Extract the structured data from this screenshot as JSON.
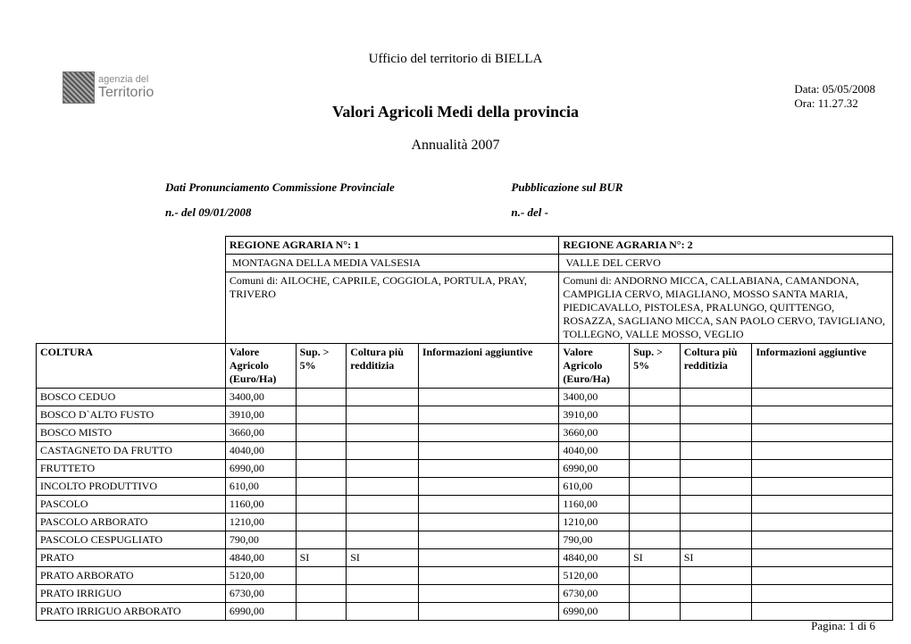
{
  "logo": {
    "line1": "agenzia del",
    "line2": "Territorio"
  },
  "office": "Ufficio del territorio di  BIELLA",
  "date_label": "Data: ",
  "date_value": "05/05/2008",
  "time_label": "Ora: ",
  "time_value": "11.27.32",
  "title": "Valori Agricoli Medi della provincia",
  "year_line": "Annualità  2007",
  "pron_label": "Dati Pronunciamento Commissione Provinciale",
  "pub_label": "Pubblicazione sul BUR",
  "pron_value": "n.- del  09/01/2008",
  "pub_value": "n.-  del -",
  "region1": {
    "header": "REGIONE AGRARIA N°:  1",
    "name": "MONTAGNA DELLA MEDIA VALSESIA",
    "comuni": "Comuni di: AILOCHE, CAPRILE, COGGIOLA, PORTULA, PRAY, TRIVERO"
  },
  "region2": {
    "header": "REGIONE AGRARIA N°: 2",
    "name": "VALLE DEL CERVO",
    "comuni": "Comuni di: ANDORNO MICCA, CALLABIANA, CAMANDONA, CAMPIGLIA CERVO, MIAGLIANO, MOSSO SANTA MARIA, PIEDICAVALLO, PISTOLESA, PRALUNGO, QUITTENGO, ROSAZZA, SAGLIANO MICCA, SAN PAOLO CERVO, TAVIGLIANO, TOLLEGNO, VALLE MOSSO, VEGLIO"
  },
  "columns": {
    "coltura": "COLTURA",
    "valore": "Valore Agricolo (Euro/Ha)",
    "sup": "Sup. > 5%",
    "redd": "Coltura più redditizia",
    "info": "Informazioni aggiuntive"
  },
  "rows": [
    {
      "c": "BOSCO CEDUO",
      "v1": "3400,00",
      "s1": "",
      "r1": "",
      "i1": "",
      "v2": "3400,00",
      "s2": "",
      "r2": "",
      "i2": ""
    },
    {
      "c": "BOSCO D`ALTO FUSTO",
      "v1": "3910,00",
      "s1": "",
      "r1": "",
      "i1": "",
      "v2": "3910,00",
      "s2": "",
      "r2": "",
      "i2": ""
    },
    {
      "c": "BOSCO MISTO",
      "v1": "3660,00",
      "s1": "",
      "r1": "",
      "i1": "",
      "v2": "3660,00",
      "s2": "",
      "r2": "",
      "i2": ""
    },
    {
      "c": "CASTAGNETO DA FRUTTO",
      "v1": "4040,00",
      "s1": "",
      "r1": "",
      "i1": "",
      "v2": "4040,00",
      "s2": "",
      "r2": "",
      "i2": ""
    },
    {
      "c": "FRUTTETO",
      "v1": "6990,00",
      "s1": "",
      "r1": "",
      "i1": "",
      "v2": "6990,00",
      "s2": "",
      "r2": "",
      "i2": ""
    },
    {
      "c": "INCOLTO PRODUTTIVO",
      "v1": "610,00",
      "s1": "",
      "r1": "",
      "i1": "",
      "v2": "610,00",
      "s2": "",
      "r2": "",
      "i2": ""
    },
    {
      "c": "PASCOLO",
      "v1": "1160,00",
      "s1": "",
      "r1": "",
      "i1": "",
      "v2": "1160,00",
      "s2": "",
      "r2": "",
      "i2": ""
    },
    {
      "c": "PASCOLO ARBORATO",
      "v1": "1210,00",
      "s1": "",
      "r1": "",
      "i1": "",
      "v2": "1210,00",
      "s2": "",
      "r2": "",
      "i2": ""
    },
    {
      "c": "PASCOLO CESPUGLIATO",
      "v1": "790,00",
      "s1": "",
      "r1": "",
      "i1": "",
      "v2": "790,00",
      "s2": "",
      "r2": "",
      "i2": ""
    },
    {
      "c": "PRATO",
      "v1": "4840,00",
      "s1": "SI",
      "r1": "SI",
      "i1": "",
      "v2": "4840,00",
      "s2": "SI",
      "r2": "SI",
      "i2": ""
    },
    {
      "c": "PRATO ARBORATO",
      "v1": "5120,00",
      "s1": "",
      "r1": "",
      "i1": "",
      "v2": "5120,00",
      "s2": "",
      "r2": "",
      "i2": ""
    },
    {
      "c": "PRATO IRRIGUO",
      "v1": "6730,00",
      "s1": "",
      "r1": "",
      "i1": "",
      "v2": "6730,00",
      "s2": "",
      "r2": "",
      "i2": ""
    },
    {
      "c": "PRATO IRRIGUO ARBORATO",
      "v1": "6990,00",
      "s1": "",
      "r1": "",
      "i1": "",
      "v2": "6990,00",
      "s2": "",
      "r2": "",
      "i2": ""
    }
  ],
  "footer": "Pagina: 1 di 6",
  "style": {
    "col_widths": {
      "coltura": 205,
      "valore": 70,
      "sup": 48,
      "redd": 72,
      "info": 150
    },
    "fonts": {
      "title": 18,
      "subtitle": 16,
      "body": 13,
      "table": 12
    },
    "colors": {
      "text": "#000000",
      "bg": "#ffffff",
      "logo_gray": "#8a8a8a"
    }
  }
}
